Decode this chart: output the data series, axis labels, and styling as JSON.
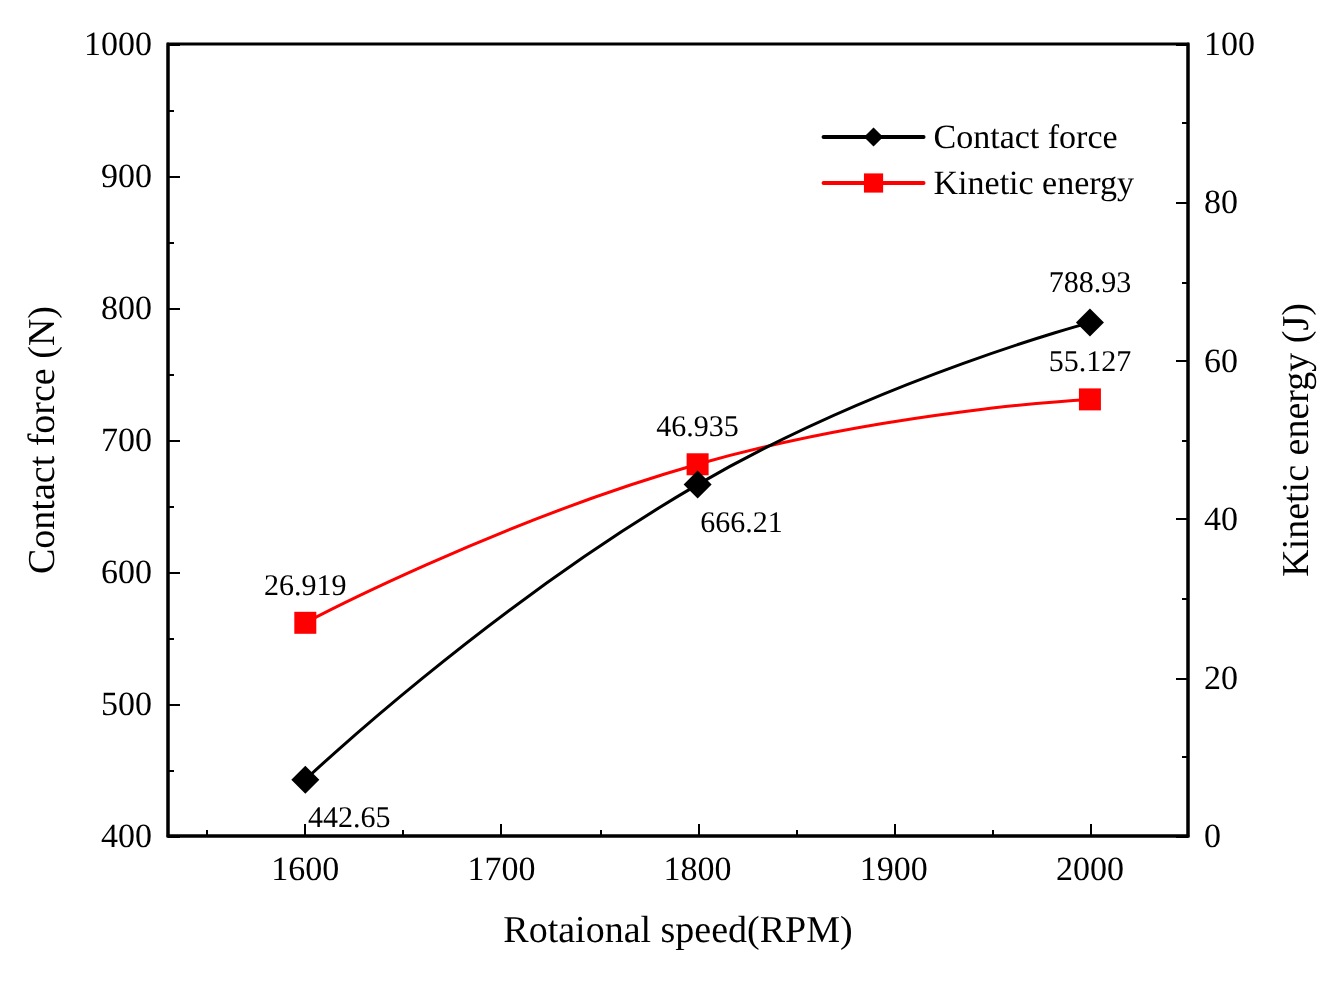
{
  "chart_data": {
    "type": "line",
    "xlabel": "Rotaional speed(RPM)",
    "ylabel": "Contact force (N)",
    "y2label": "Kinetic energy (J)",
    "x": [
      1600,
      1800,
      2000
    ],
    "series": [
      {
        "name": "Contact force",
        "color": "#000000",
        "marker": "diamond",
        "values": [
          442.65,
          666.21,
          788.93
        ]
      },
      {
        "name": "Kinetic energy",
        "color": "#ff0000",
        "marker": "square",
        "axis": "y2",
        "values": [
          26.919,
          46.935,
          55.127
        ]
      }
    ],
    "xlim": [
      1530,
      2050
    ],
    "xticks": [
      1600,
      1700,
      1800,
      1900,
      2000
    ],
    "ylim": [
      400,
      1000
    ],
    "yticks": [
      400,
      500,
      600,
      700,
      800,
      900,
      1000
    ],
    "y2lim": [
      0,
      100
    ],
    "y2ticks": [
      0,
      20,
      40,
      60,
      80,
      100
    ],
    "data_labels": true,
    "legend": "top right",
    "grid": false,
    "line_style": "solid"
  }
}
